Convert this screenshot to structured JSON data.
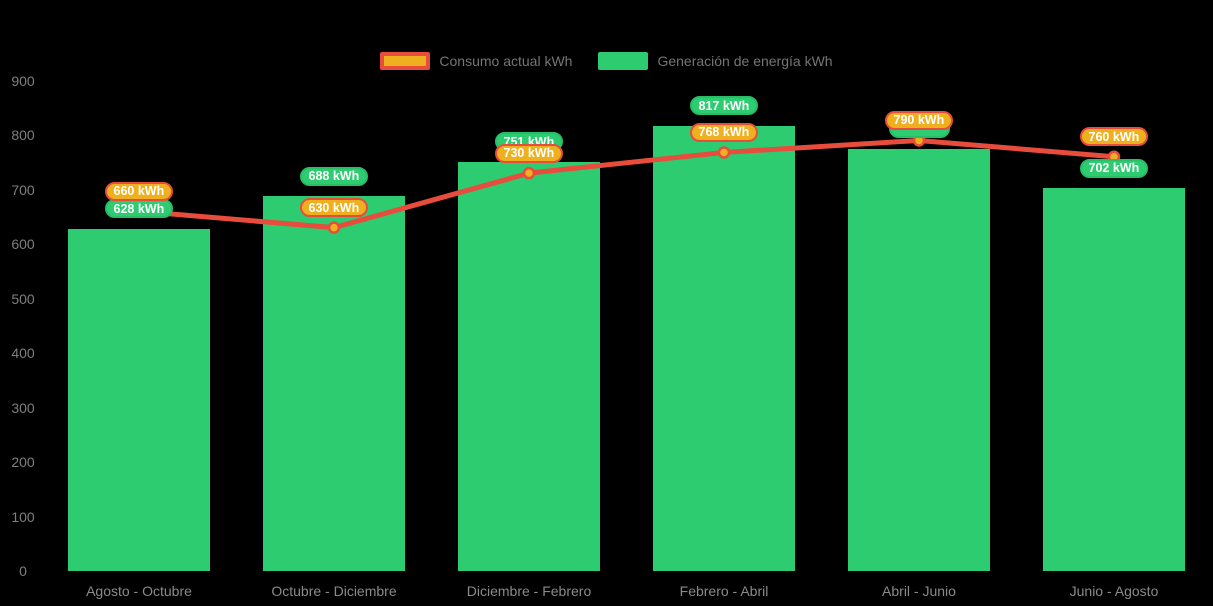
{
  "background": "#000000",
  "colors": {
    "bar": "#2ecc71",
    "line": "#e74c3c",
    "marker_fill": "#eeb01f",
    "green_label_bg": "#2ecc71",
    "orange_label_bg": "#eeb01f",
    "orange_label_border": "#e74c3c",
    "axis_text": "#7f7f7f",
    "legend_text": "#757575",
    "label_text": "#ffffff"
  },
  "legend": {
    "consumo_label": "Consumo actual kWh",
    "generacion_label": "Generación de energía kWh"
  },
  "chart_data": {
    "type": "bar",
    "categories": [
      "Agosto - Octubre",
      "Octubre - Diciembre",
      "Diciembre - Febrero",
      "Febrero - Abril",
      "Abril - Junio",
      "Junio - Agosto"
    ],
    "series": [
      {
        "name": "Consumo actual kWh",
        "type": "line",
        "color": "#e74c3c",
        "values": [
          660,
          630,
          730,
          768,
          790,
          760
        ],
        "labels": [
          "660 kWh",
          "630 kWh",
          "730 kWh",
          "768 kWh",
          "790 kWh",
          "760 kWh"
        ],
        "labels_visible": [
          true,
          true,
          true,
          true,
          true,
          true
        ]
      },
      {
        "name": "Generación de energía kWh",
        "type": "bar",
        "color": "#2ecc71",
        "values": [
          628,
          688,
          751,
          817,
          775,
          702
        ],
        "labels": [
          "628 kWh",
          "688 kWh",
          "751 kWh",
          "817 kWh",
          "775 kWh",
          "702 kWh"
        ],
        "labels_visible": [
          true,
          true,
          true,
          true,
          false,
          true
        ]
      }
    ],
    "ylim": [
      0,
      900
    ],
    "yticks": [
      0,
      100,
      200,
      300,
      400,
      500,
      600,
      700,
      800,
      900
    ],
    "value_suffix": " kWh",
    "grid": false,
    "legend_position": "top",
    "xlabel": "",
    "ylabel": ""
  }
}
